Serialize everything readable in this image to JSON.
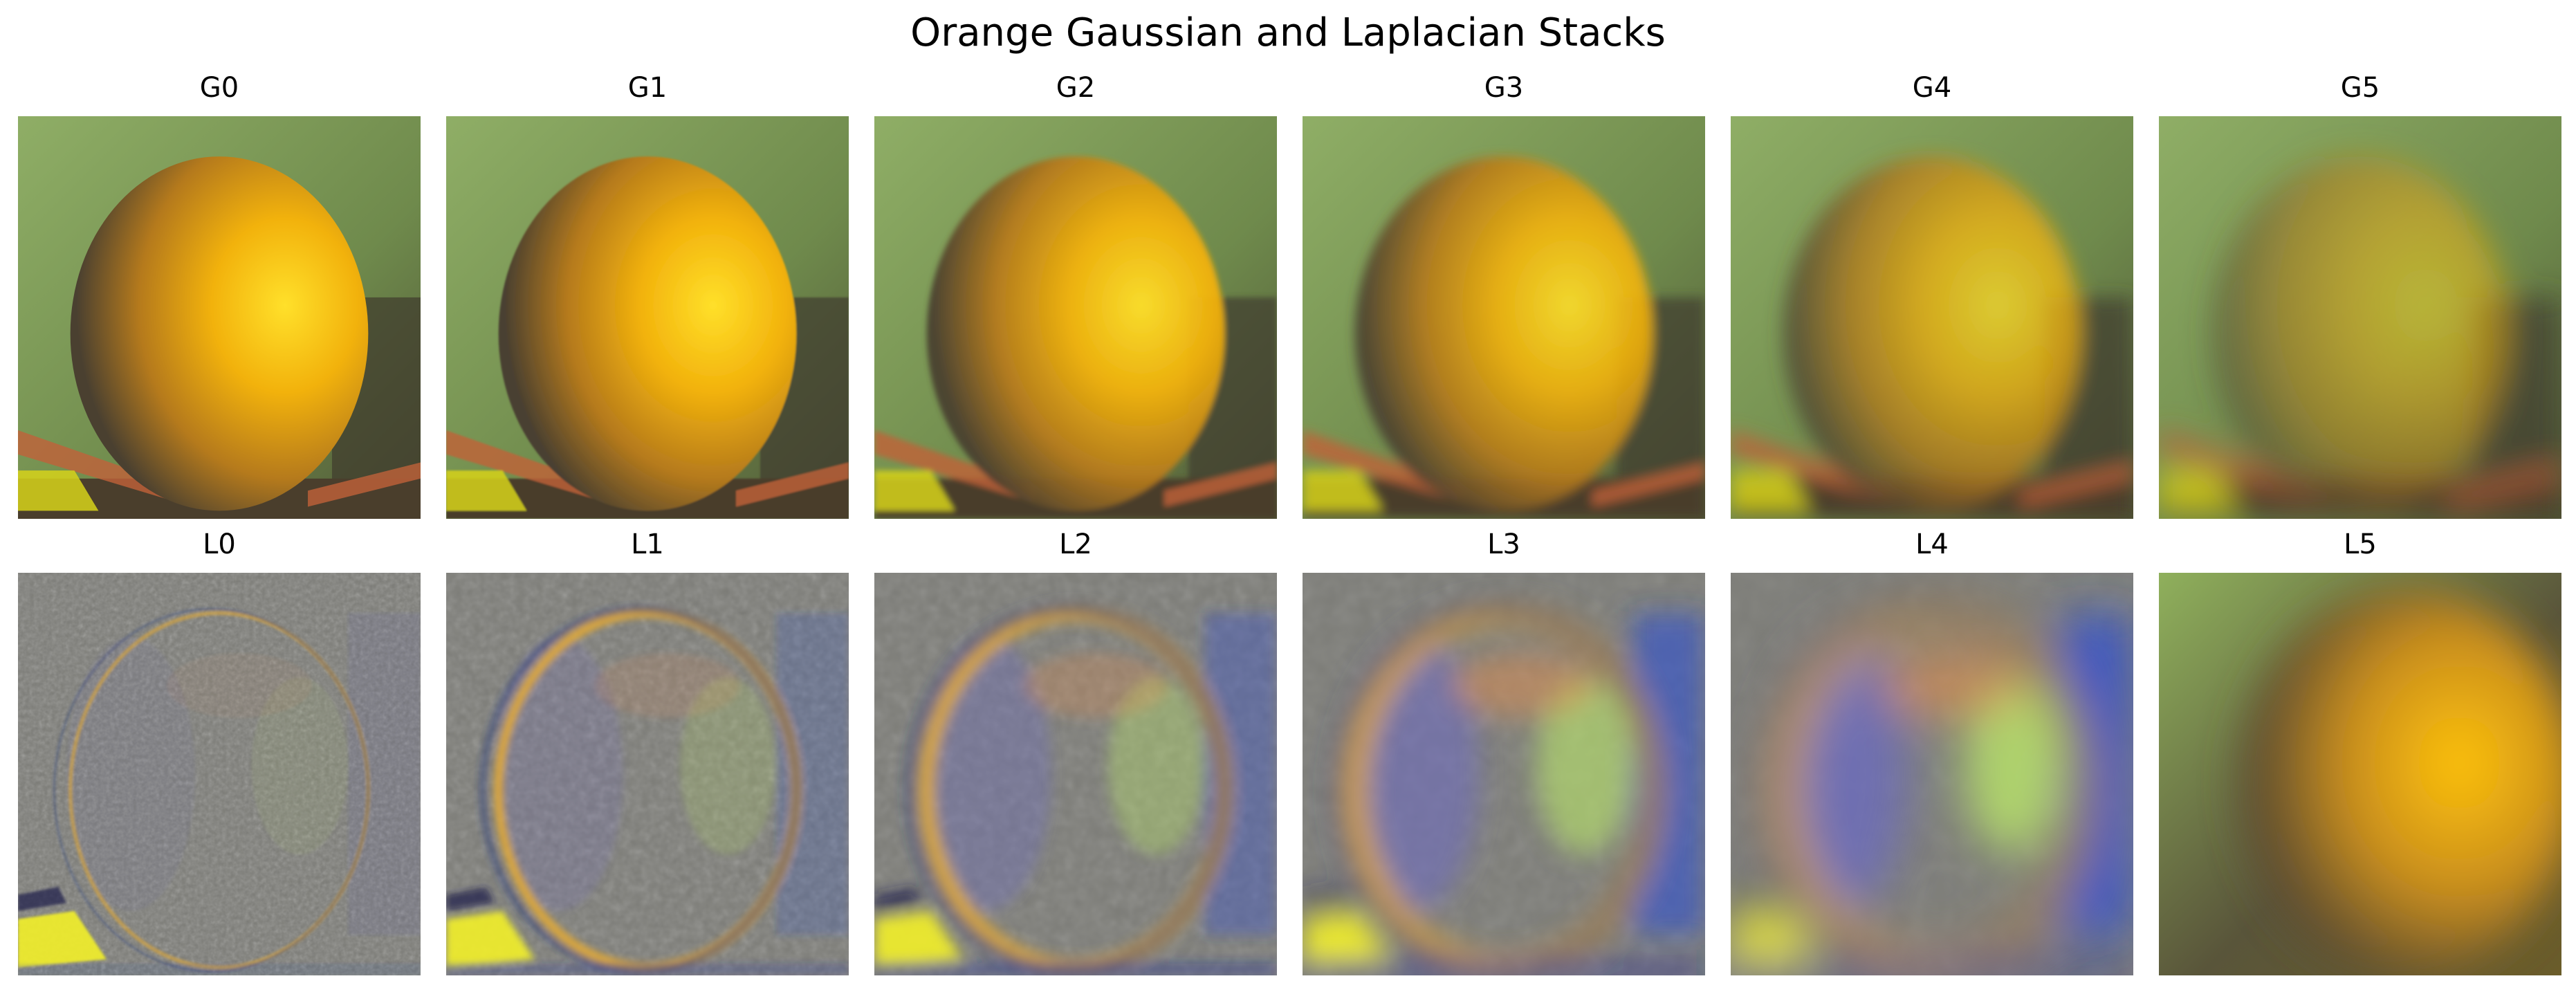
{
  "figure": {
    "title": "Orange Gaussian and Laplacian Stacks"
  },
  "gaussian_row": [
    {
      "label": "G0",
      "level": 0
    },
    {
      "label": "G1",
      "level": 1
    },
    {
      "label": "G2",
      "level": 2
    },
    {
      "label": "G3",
      "level": 3
    },
    {
      "label": "G4",
      "level": 4
    },
    {
      "label": "G5",
      "level": 5
    }
  ],
  "laplacian_row": [
    {
      "label": "L0",
      "level": 0
    },
    {
      "label": "L1",
      "level": 1
    },
    {
      "label": "L2",
      "level": 2
    },
    {
      "label": "L3",
      "level": 3
    },
    {
      "label": "L4",
      "level": 4
    },
    {
      "label": "L5",
      "level": 5
    }
  ],
  "colors": {
    "background_green": "#6f8a4c",
    "orange_bright": "#f2b20c",
    "orange_shadow": "#4a4030",
    "laplacian_gray": "#7d7d78",
    "laplacian_blue": "#2e4fd0",
    "laplacian_green": "#b6e06a"
  }
}
